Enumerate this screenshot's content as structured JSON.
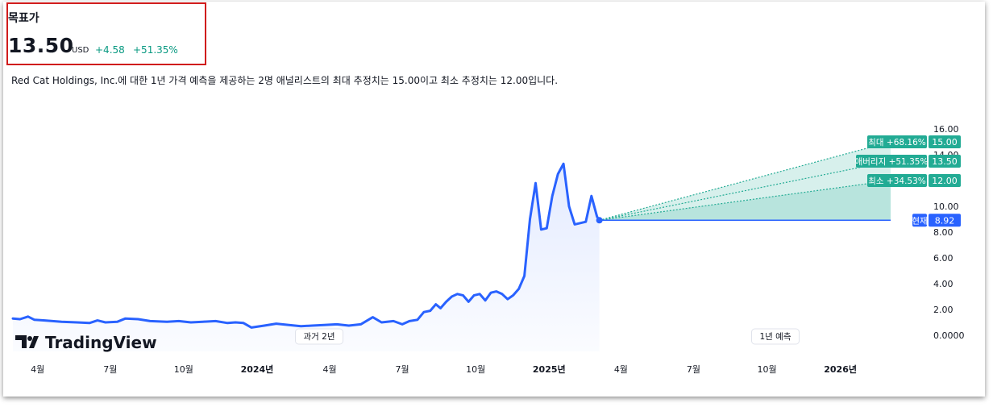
{
  "header": {
    "title": "목표가",
    "price": "13.50",
    "unit": "USD",
    "change": "+4.58",
    "change_pct": "+51.35%"
  },
  "description": "Red Cat Holdings, Inc.에 대한 1년 가격 예측을 제공하는 2명 애널리스트의 최대 추정치는 15.00이고 최소 추정치는 12.00입니다.",
  "brand": "TradingView",
  "colors": {
    "line": "#2962ff",
    "forecast_green": "#22ab94",
    "change_green": "#089981",
    "current_blue": "#2962ff"
  },
  "chart_data": {
    "type": "line",
    "y_ticks": [
      "16.00",
      "14.00",
      "10.00",
      "8.00",
      "6.00",
      "4.00",
      "2.00",
      "0.0000"
    ],
    "x_ticks": [
      "4월",
      "7월",
      "10월",
      "2024년",
      "4월",
      "7월",
      "10월",
      "2025년",
      "4월",
      "7월",
      "10월",
      "2026년"
    ],
    "ylim": [
      0,
      16
    ],
    "period_labels": {
      "past": "과거 2년",
      "forecast": "1년 예측"
    },
    "history": [
      [
        "2023-03-01",
        1.3
      ],
      [
        "2023-03-10",
        1.25
      ],
      [
        "2023-03-20",
        1.45
      ],
      [
        "2023-03-28",
        1.2
      ],
      [
        "2023-04-10",
        1.15
      ],
      [
        "2023-05-01",
        1.05
      ],
      [
        "2023-05-20",
        1.0
      ],
      [
        "2023-06-05",
        0.95
      ],
      [
        "2023-06-15",
        1.15
      ],
      [
        "2023-06-25",
        1.0
      ],
      [
        "2023-07-10",
        1.05
      ],
      [
        "2023-07-20",
        1.3
      ],
      [
        "2023-08-05",
        1.25
      ],
      [
        "2023-08-20",
        1.1
      ],
      [
        "2023-09-10",
        1.05
      ],
      [
        "2023-09-25",
        1.1
      ],
      [
        "2023-10-10",
        1.0
      ],
      [
        "2023-10-25",
        1.05
      ],
      [
        "2023-11-10",
        1.1
      ],
      [
        "2023-11-25",
        0.95
      ],
      [
        "2023-12-05",
        1.0
      ],
      [
        "2023-12-15",
        0.95
      ],
      [
        "2023-12-25",
        0.6
      ],
      [
        "2024-01-10",
        0.75
      ],
      [
        "2024-01-25",
        0.9
      ],
      [
        "2024-02-10",
        0.8
      ],
      [
        "2024-02-25",
        0.7
      ],
      [
        "2024-03-10",
        0.75
      ],
      [
        "2024-03-25",
        0.8
      ],
      [
        "2024-04-10",
        0.85
      ],
      [
        "2024-04-25",
        0.75
      ],
      [
        "2024-05-10",
        0.85
      ],
      [
        "2024-05-25",
        1.4
      ],
      [
        "2024-06-05",
        1.0
      ],
      [
        "2024-06-20",
        1.1
      ],
      [
        "2024-07-01",
        0.85
      ],
      [
        "2024-07-10",
        1.1
      ],
      [
        "2024-07-20",
        1.2
      ],
      [
        "2024-07-28",
        1.8
      ],
      [
        "2024-08-05",
        1.9
      ],
      [
        "2024-08-12",
        2.4
      ],
      [
        "2024-08-18",
        2.1
      ],
      [
        "2024-08-25",
        2.6
      ],
      [
        "2024-09-01",
        3.0
      ],
      [
        "2024-09-08",
        3.2
      ],
      [
        "2024-09-15",
        3.1
      ],
      [
        "2024-09-22",
        2.6
      ],
      [
        "2024-09-29",
        3.1
      ],
      [
        "2024-10-06",
        3.2
      ],
      [
        "2024-10-13",
        2.7
      ],
      [
        "2024-10-20",
        3.3
      ],
      [
        "2024-10-27",
        3.4
      ],
      [
        "2024-11-03",
        3.2
      ],
      [
        "2024-11-10",
        2.8
      ],
      [
        "2024-11-17",
        3.1
      ],
      [
        "2024-11-24",
        3.6
      ],
      [
        "2024-12-01",
        4.6
      ],
      [
        "2024-12-08",
        9.0
      ],
      [
        "2024-12-15",
        11.8
      ],
      [
        "2024-12-22",
        8.2
      ],
      [
        "2024-12-29",
        8.3
      ],
      [
        "2025-01-05",
        10.8
      ],
      [
        "2025-01-12",
        12.5
      ],
      [
        "2025-01-19",
        13.3
      ],
      [
        "2025-01-26",
        10.0
      ],
      [
        "2025-02-02",
        8.6
      ],
      [
        "2025-02-09",
        8.7
      ],
      [
        "2025-02-16",
        8.8
      ],
      [
        "2025-02-23",
        10.8
      ],
      [
        "2025-03-02",
        9.2
      ],
      [
        "2025-03-05",
        8.92
      ]
    ],
    "forecast": {
      "end_date": "2026-03-05",
      "current": {
        "label": "현재",
        "value": "8.92"
      },
      "max": {
        "label": "최대 +68.16%",
        "value": "15.00"
      },
      "avg": {
        "label": "애버리지 +51.35%",
        "value": "13.50"
      },
      "min": {
        "label": "최소 +34.53%",
        "value": "12.00"
      }
    }
  }
}
